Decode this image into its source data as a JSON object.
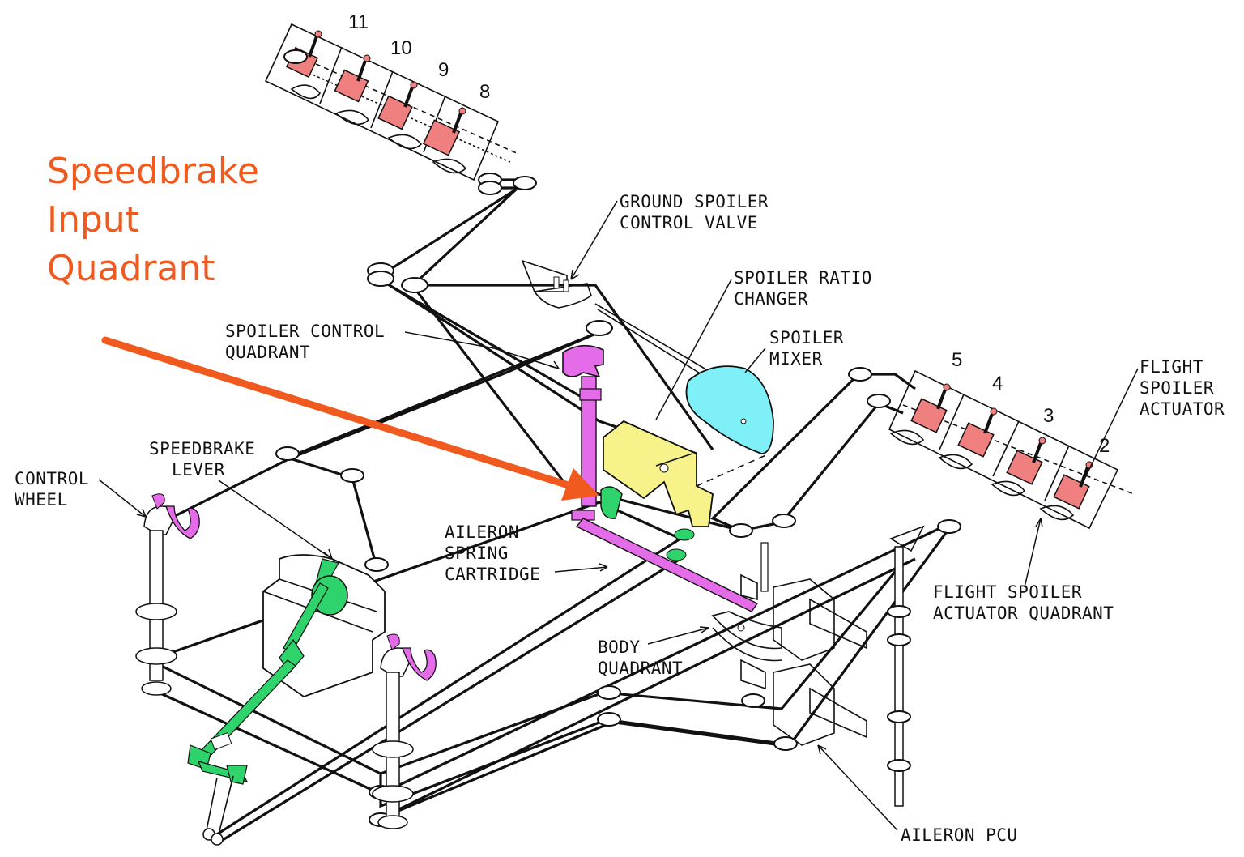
{
  "title": {
    "lines": [
      "Speedbrake",
      "Input",
      "Quadrant"
    ],
    "color": "#f05a1e"
  },
  "colors": {
    "speedbrake_linkage": "#2fd36b",
    "control_wheel": "#e46ce8",
    "ratio_changer": "#f7f38a",
    "spoiler_mixer": "#7ff0f7",
    "actuator": "#f08080",
    "arrow": "#f05a1e",
    "line": "#111111"
  },
  "panel_numbers": {
    "n11": "11",
    "n10": "10",
    "n9": "9",
    "n8": "8",
    "n5": "5",
    "n4": "4",
    "n3": "3",
    "n2": "2"
  },
  "labels": {
    "ground_spoiler_control_valve": [
      "GROUND SPOILER",
      "CONTROL VALVE"
    ],
    "spoiler_ratio_changer": [
      "SPOILER RATIO",
      "CHANGER"
    ],
    "spoiler_mixer": [
      "SPOILER",
      "MIXER"
    ],
    "flight_spoiler_actuator": [
      "FLIGHT",
      "SPOILER",
      "ACTUATOR"
    ],
    "spoiler_control_quadrant": [
      "SPOILER CONTROL",
      "QUADRANT"
    ],
    "speedbrake_lever": [
      "SPEEDBRAKE",
      "LEVER"
    ],
    "control_wheel": [
      "CONTROL",
      "WHEEL"
    ],
    "aileron_spring_cartridge": [
      "AILERON",
      "SPRING",
      "CARTRIDGE"
    ],
    "flight_spoiler_actuator_quadrant": [
      "FLIGHT SPOILER",
      "ACTUATOR QUADRANT"
    ],
    "body_quadrant": [
      "BODY",
      "QUADRANT"
    ],
    "aileron_pcu": [
      "AILERON PCU"
    ]
  }
}
